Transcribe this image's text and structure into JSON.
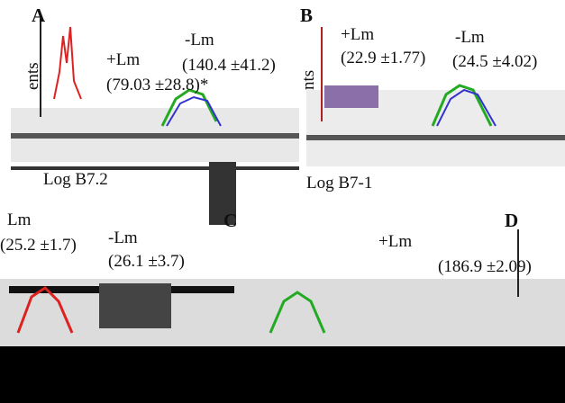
{
  "panels": [
    {
      "label": "A",
      "annotations": [
        "+Lm",
        "(79.03 ±28.8)*",
        "-Lm",
        "(140.4 ±41.2)"
      ],
      "y_axis_label": "ents",
      "x_axis_label": "Log B7.2"
    },
    {
      "label": "B",
      "annotations": [
        "+Lm",
        "(22.9 ±1.77)",
        "-Lm",
        "(24.5 ±4.02)"
      ],
      "y_axis_label": "nts",
      "x_axis_label": "Log B7-1"
    },
    {
      "label": "C",
      "annotations": [
        "Lm",
        "(25.2 ±1.7)",
        "-Lm",
        "(26.1 ±3.7)"
      ]
    },
    {
      "label": "D",
      "annotations": [
        "+Lm",
        "(186.9 ±2.09)"
      ]
    }
  ]
}
